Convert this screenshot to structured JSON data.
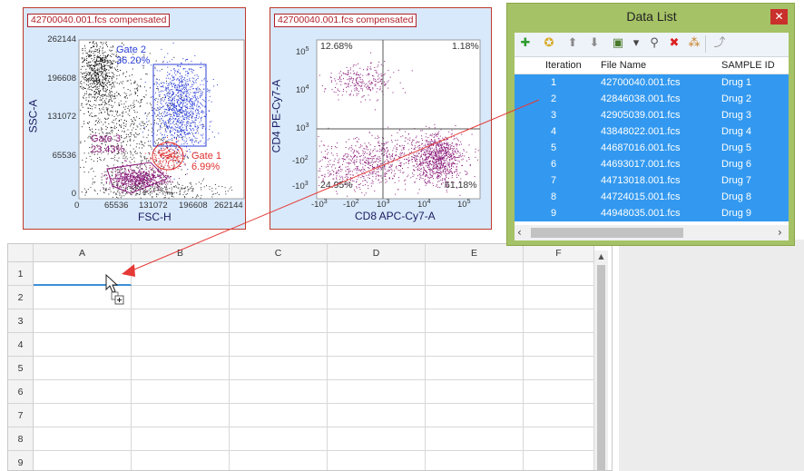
{
  "plot1": {
    "title": "42700040.001.fcs compensated",
    "xlabel": "FSC-H",
    "ylabel": "SSC-A",
    "yticks": [
      "262144",
      "196608",
      "131072",
      "65536",
      "0"
    ],
    "xticks": [
      "0",
      "65536",
      "131072",
      "196608",
      "262144"
    ],
    "gates": [
      {
        "name": "Gate 2",
        "pct": "36.20%",
        "color": "#2b3fd6"
      },
      {
        "name": "Gate 3",
        "pct": "23.43%",
        "color": "#8a1b7a"
      },
      {
        "name": "Gate 1",
        "pct": "6.99%",
        "color": "#e03030"
      }
    ]
  },
  "plot2": {
    "title": "42700040.001.fcs compensated",
    "xlabel": "CD8 APC-Cy7-A",
    "ylabel": "CD4 PE-Cy7-A",
    "quadrants": {
      "tl": "12.68%",
      "tr": "1.18%",
      "bl": "24.95%",
      "br": "61.18%"
    },
    "yticks": [
      {
        "base": "10",
        "exp": "5"
      },
      {
        "base": "10",
        "exp": "4"
      },
      {
        "base": "10",
        "exp": "3"
      },
      {
        "base": "-10",
        "exp": "2"
      },
      {
        "base": "-10",
        "exp": "3"
      }
    ],
    "xticks": [
      {
        "base": "-10",
        "exp": "3"
      },
      {
        "base": "-10",
        "exp": "2"
      },
      {
        "base": "10",
        "exp": "3"
      },
      {
        "base": "10",
        "exp": "4"
      },
      {
        "base": "10",
        "exp": "5"
      }
    ]
  },
  "data_list": {
    "title": "Data List",
    "close": "✕",
    "toolbar": [
      {
        "icon": "add-icon",
        "glyph": "✚",
        "color": "#2e9b2e"
      },
      {
        "icon": "gear-icon",
        "glyph": "✪",
        "color": "#d7a81c"
      },
      {
        "icon": "move-up-icon",
        "glyph": "⬆",
        "color": "#8a8a8a"
      },
      {
        "icon": "move-down-icon",
        "glyph": "⬇",
        "color": "#8a8a8a"
      },
      {
        "icon": "export-icon",
        "glyph": "▣",
        "color": "#4a7a2a"
      },
      {
        "icon": "dropdown-arrow-icon",
        "glyph": "▾",
        "color": "#444"
      },
      {
        "icon": "search-icon",
        "glyph": "⚲",
        "color": "#555"
      },
      {
        "icon": "delete-icon",
        "glyph": "✖",
        "color": "#d22"
      },
      {
        "icon": "keywords-icon",
        "glyph": "⁂",
        "color": "#c77b1c"
      },
      {
        "icon": "link-icon",
        "glyph": "⤴",
        "color": "#999"
      }
    ],
    "columns": [
      "Iteration",
      "File Name",
      "SAMPLE ID"
    ],
    "rows": [
      {
        "iteration": "1",
        "file": "42700040.001.fcs",
        "sample": "Drug 1"
      },
      {
        "iteration": "2",
        "file": "42846038.001.fcs",
        "sample": "Drug 2"
      },
      {
        "iteration": "3",
        "file": "42905039.001.fcs",
        "sample": "Drug 3"
      },
      {
        "iteration": "4",
        "file": "43848022.001.fcs",
        "sample": "Drug 4"
      },
      {
        "iteration": "5",
        "file": "44687016.001.fcs",
        "sample": "Drug 5"
      },
      {
        "iteration": "6",
        "file": "44693017.001.fcs",
        "sample": "Drug 6"
      },
      {
        "iteration": "7",
        "file": "44713018.001.fcs",
        "sample": "Drug 7"
      },
      {
        "iteration": "8",
        "file": "44724015.001.fcs",
        "sample": "Drug 8"
      },
      {
        "iteration": "9",
        "file": "44948035.001.fcs",
        "sample": "Drug 9"
      }
    ],
    "selection_color": "#3399f0"
  },
  "spreadsheet": {
    "columns": [
      "A",
      "B",
      "C",
      "D",
      "E",
      "F"
    ],
    "rows": [
      "1",
      "2",
      "3",
      "4",
      "5",
      "6",
      "7",
      "8",
      "9"
    ],
    "drag_arrow_color": "#e53935"
  }
}
